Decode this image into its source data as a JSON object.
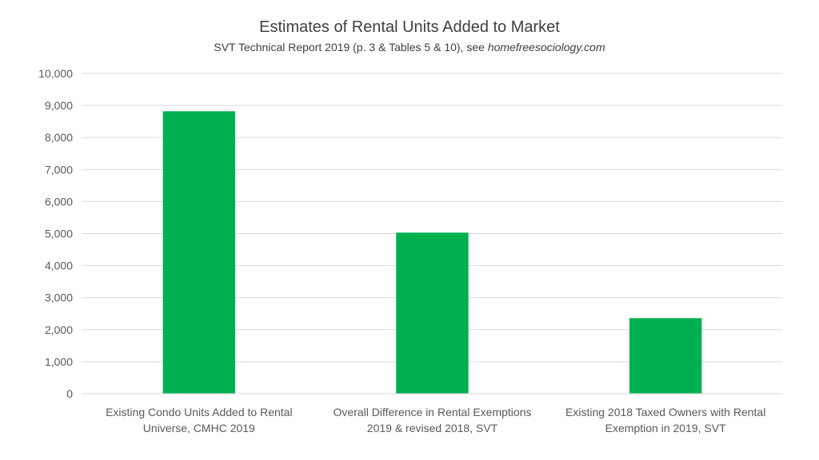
{
  "chart_data": {
    "type": "bar",
    "title": "Estimates of Rental Units Added to Market",
    "subtitle": {
      "prefix": "SVT Technical Report 2019 (p. 3 & Tables 5 & 10), see ",
      "link": "homefreesociology.com"
    },
    "categories": [
      [
        "Existing Condo Units Added to Rental",
        "Universe, CMHC 2019"
      ],
      [
        "Overall Difference in Rental Exemptions",
        "2019 & revised 2018, SVT"
      ],
      [
        "Existing 2018 Taxed Owners with Rental",
        "Exemption in 2019, SVT"
      ]
    ],
    "values": [
      8820,
      5030,
      2360
    ],
    "ylim": [
      0,
      10000
    ],
    "yticks": [
      0,
      1000,
      2000,
      3000,
      4000,
      5000,
      6000,
      7000,
      8000,
      9000,
      10000
    ],
    "ytick_labels": [
      "0",
      "1,000",
      "2,000",
      "3,000",
      "4,000",
      "5,000",
      "6,000",
      "7,000",
      "8,000",
      "9,000",
      "10,000"
    ],
    "xlabel": "",
    "ylabel": "",
    "grid": true,
    "legend": "none",
    "bar_color": "#00b050"
  }
}
